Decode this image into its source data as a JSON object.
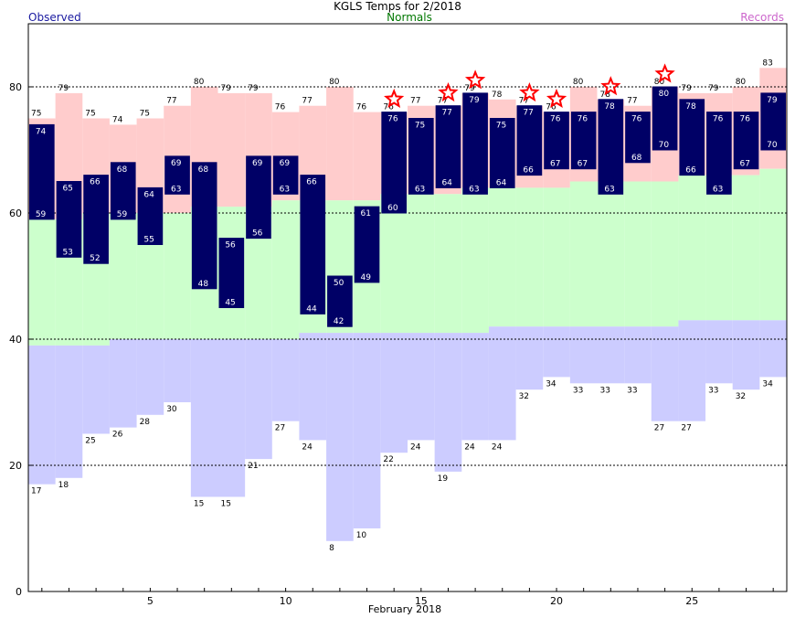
{
  "header": {
    "title": "KGLS Temps for 2/2018",
    "legend_observed": "Observed",
    "legend_normals": "Normals",
    "legend_records": "Records"
  },
  "colors": {
    "observed": "#000066",
    "observed_label": "#1a1aa0",
    "normals": "#007700",
    "records": "#cc66cc",
    "record_high_band": "#ffcccc",
    "normal_band": "#ccffcc",
    "record_low_band": "#ccccff",
    "record_star": "#ff0000",
    "grid": "#000000"
  },
  "chart_data": {
    "type": "bar",
    "title": "KGLS Temps for 2/2018",
    "xlabel": "February 2018",
    "ylabel": "",
    "x_ticks": [
      5,
      10,
      15,
      20,
      25
    ],
    "y_ticks": [
      0,
      20,
      40,
      60,
      80
    ],
    "xlim": [
      0.5,
      28.5
    ],
    "ylim": [
      0,
      90
    ],
    "grid": "dashed horizontal lines at 20, 40, 60, 80",
    "days": [
      1,
      2,
      3,
      4,
      5,
      6,
      7,
      8,
      9,
      10,
      11,
      12,
      13,
      14,
      15,
      16,
      17,
      18,
      19,
      20,
      21,
      22,
      23,
      24,
      25,
      26,
      27,
      28
    ],
    "observed_high": [
      74,
      65,
      66,
      68,
      64,
      69,
      68,
      56,
      69,
      69,
      66,
      50,
      61,
      76,
      75,
      77,
      79,
      75,
      77,
      76,
      76,
      78,
      76,
      80,
      78,
      76,
      76,
      79
    ],
    "observed_low": [
      59,
      53,
      52,
      59,
      55,
      63,
      48,
      45,
      56,
      63,
      44,
      42,
      49,
      60,
      63,
      64,
      63,
      64,
      66,
      67,
      67,
      63,
      68,
      70,
      66,
      63,
      67,
      70
    ],
    "normal_high": [
      59,
      59,
      60,
      60,
      60,
      60,
      61,
      61,
      61,
      62,
      62,
      62,
      62,
      63,
      63,
      63,
      64,
      64,
      64,
      64,
      65,
      65,
      65,
      65,
      66,
      66,
      66,
      67
    ],
    "normal_low": [
      39,
      39,
      39,
      40,
      40,
      40,
      40,
      40,
      40,
      40,
      41,
      41,
      41,
      41,
      41,
      41,
      41,
      42,
      42,
      42,
      42,
      42,
      42,
      42,
      43,
      43,
      43,
      43
    ],
    "record_high": [
      75,
      79,
      75,
      74,
      75,
      77,
      80,
      79,
      79,
      76,
      77,
      80,
      76,
      76,
      77,
      77,
      79,
      78,
      77,
      76,
      80,
      78,
      77,
      80,
      79,
      79,
      80,
      83
    ],
    "record_low": [
      17,
      18,
      25,
      26,
      28,
      30,
      15,
      15,
      21,
      27,
      24,
      8,
      10,
      22,
      24,
      19,
      24,
      24,
      32,
      34,
      33,
      33,
      33,
      27,
      27,
      33,
      32,
      34
    ],
    "record_high_set_days": [
      14,
      16,
      17,
      19,
      20,
      22,
      24
    ]
  }
}
